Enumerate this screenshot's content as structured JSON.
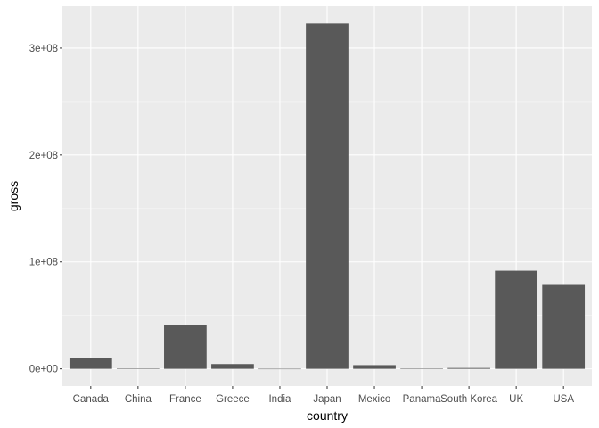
{
  "chart_data": {
    "type": "bar",
    "title": "",
    "xlabel": "country",
    "ylabel": "gross",
    "categories": [
      "Canada",
      "China",
      "France",
      "Greece",
      "India",
      "Japan",
      "Mexico",
      "Panama",
      "South Korea",
      "UK",
      "USA"
    ],
    "values": [
      10500000,
      150000,
      41000000,
      4500000,
      50000,
      323000000,
      3500000,
      100000,
      800000,
      91800000,
      78500000
    ],
    "ylim": [
      -16150000,
      339150000
    ],
    "yticks": [
      0,
      100000000,
      200000000,
      300000000
    ],
    "ytick_labels": [
      "0e+00",
      "1e+08",
      "2e+08",
      "3e+08"
    ],
    "grid": true,
    "legend": "none",
    "colors": {
      "panel_background": "#ebebeb",
      "grid_major": "#ffffff",
      "grid_minor": "#f5f5f5",
      "bar_fill": "#595959",
      "tick_color": "#333333"
    }
  }
}
